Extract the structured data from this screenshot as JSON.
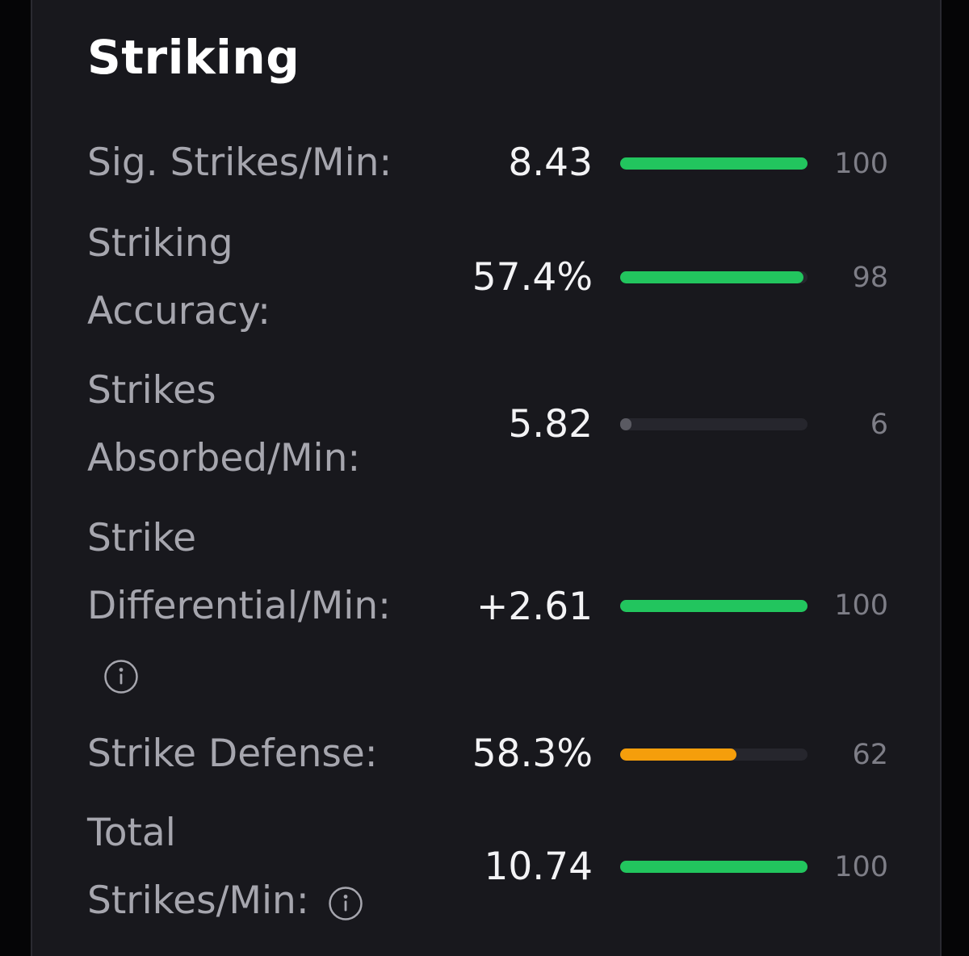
{
  "section": {
    "title": "Striking"
  },
  "colors": {
    "good": "#22c55e",
    "average": "#f59e0b",
    "poor": "#5a5a62",
    "track": "#26262d"
  },
  "stats": [
    {
      "label_lines": [
        "Sig. Strikes/Min:"
      ],
      "value": "8.43",
      "rank": "100",
      "percentile": 100,
      "bar_color": "good",
      "has_info": false
    },
    {
      "label_lines": [
        "Striking",
        "Accuracy:"
      ],
      "value": "57.4%",
      "rank": "98",
      "percentile": 98,
      "bar_color": "good",
      "has_info": false
    },
    {
      "label_lines": [
        "Strikes",
        "Absorbed/Min:"
      ],
      "value": "5.82",
      "rank": "6",
      "percentile": 6,
      "bar_color": "poor",
      "has_info": false
    },
    {
      "label_lines": [
        "Strike",
        "Differential/Min:"
      ],
      "value": "+2.61",
      "rank": "100",
      "percentile": 100,
      "bar_color": "good",
      "has_info": true,
      "info_icon": "info-icon",
      "info_position": "own-line"
    },
    {
      "label_lines": [
        "Strike Defense:"
      ],
      "value": "58.3%",
      "rank": "62",
      "percentile": 62,
      "bar_color": "average",
      "has_info": false
    },
    {
      "label_lines": [
        "Total",
        "Strikes/Min:"
      ],
      "value": "10.74",
      "rank": "100",
      "percentile": 100,
      "bar_color": "good",
      "has_info": true,
      "info_icon": "info-icon",
      "info_position": "inline"
    }
  ]
}
